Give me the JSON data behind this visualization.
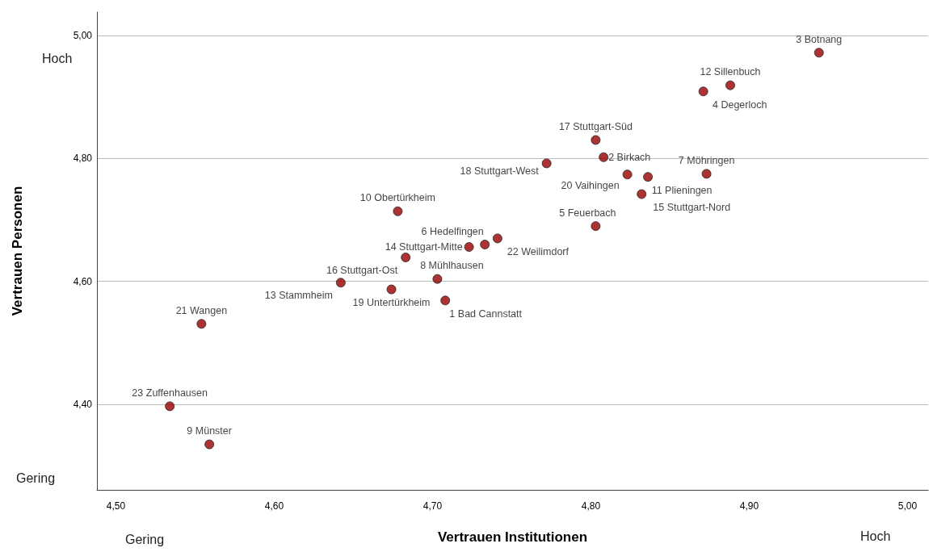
{
  "chart_data": {
    "type": "scatter",
    "xlabel": "Vertrauen Institutionen",
    "ylabel": "Vertrauen Personen",
    "x": [
      4.944,
      4.888,
      4.871,
      4.803,
      4.808,
      4.772,
      4.823,
      4.836,
      4.873,
      4.832,
      4.803,
      4.678,
      4.723,
      4.733,
      4.741,
      4.683,
      4.642,
      4.674,
      4.703,
      4.708,
      4.554,
      4.534,
      4.559
    ],
    "series": [
      {
        "color": "#990000",
        "values": [
          4.972,
          4.919,
          4.909,
          4.83,
          4.802,
          4.792,
          4.774,
          4.77,
          4.775,
          4.742,
          4.69,
          4.714,
          4.656,
          4.66,
          4.67,
          4.639,
          4.598,
          4.587,
          4.604,
          4.569,
          4.531,
          4.397,
          4.335
        ]
      }
    ],
    "annotations": [
      {
        "text": "3 Botnang",
        "x": 4.944,
        "y": 4.972
      },
      {
        "text": "12 Sillenbuch",
        "x": 4.888,
        "y": 4.919
      },
      {
        "text": "4 Degerloch",
        "x": 4.871,
        "y": 4.909
      },
      {
        "text": "17 Stuttgart-Süd",
        "x": 4.803,
        "y": 4.83
      },
      {
        "text": "2 Birkach",
        "x": 4.808,
        "y": 4.802
      },
      {
        "text": "18 Stuttgart-West",
        "x": 4.772,
        "y": 4.792
      },
      {
        "text": "20 Vaihingen",
        "x": 4.823,
        "y": 4.774
      },
      {
        "text": "11 Plieningen",
        "x": 4.836,
        "y": 4.77
      },
      {
        "text": "7 Möhringen",
        "x": 4.873,
        "y": 4.775
      },
      {
        "text": "15 Stuttgart-Nord",
        "x": 4.832,
        "y": 4.742
      },
      {
        "text": "5 Feuerbach",
        "x": 4.803,
        "y": 4.69
      },
      {
        "text": "10 Obertürkheim",
        "x": 4.678,
        "y": 4.714
      },
      {
        "text": "14 Stuttgart-Mitte",
        "x": 4.723,
        "y": 4.656
      },
      {
        "text": "6 Hedelfingen",
        "x": 4.733,
        "y": 4.66
      },
      {
        "text": "22 Weilimdorf",
        "x": 4.741,
        "y": 4.67
      },
      {
        "text": "16 Stuttgart-Ost",
        "x": 4.683,
        "y": 4.639
      },
      {
        "text": "13 Stammheim",
        "x": 4.642,
        "y": 4.598
      },
      {
        "text": "19 Untertürkheim",
        "x": 4.674,
        "y": 4.587
      },
      {
        "text": "8 Mühlhausen",
        "x": 4.703,
        "y": 4.604
      },
      {
        "text": "1 Bad Cannstatt",
        "x": 4.708,
        "y": 4.569
      },
      {
        "text": "21 Wangen",
        "x": 4.554,
        "y": 4.531
      },
      {
        "text": "23 Zuffenhausen",
        "x": 4.534,
        "y": 4.397
      },
      {
        "text": "9 Münster",
        "x": 4.559,
        "y": 4.335
      },
      "Hoch",
      "Gering",
      "Gering",
      "Hoch"
    ],
    "xlim": [
      4.488,
      5.013
    ],
    "ylim": [
      4.261,
      5.038
    ],
    "xticks": [
      {
        "value": 4.5,
        "label": "4,50"
      },
      {
        "value": 4.6,
        "label": "4,60"
      },
      {
        "value": 4.7,
        "label": "4,70"
      },
      {
        "value": 4.8,
        "label": "4,80"
      },
      {
        "value": 4.9,
        "label": "4,90"
      },
      {
        "value": 5.0,
        "label": "5,00"
      }
    ],
    "yticks": [
      {
        "value": 4.4,
        "label": "4,40"
      },
      {
        "value": 4.6,
        "label": "4,60"
      },
      {
        "value": 4.8,
        "label": "4,80"
      },
      {
        "value": 5.0,
        "label": "5,00"
      }
    ],
    "grid": "y",
    "marker": "circle"
  }
}
